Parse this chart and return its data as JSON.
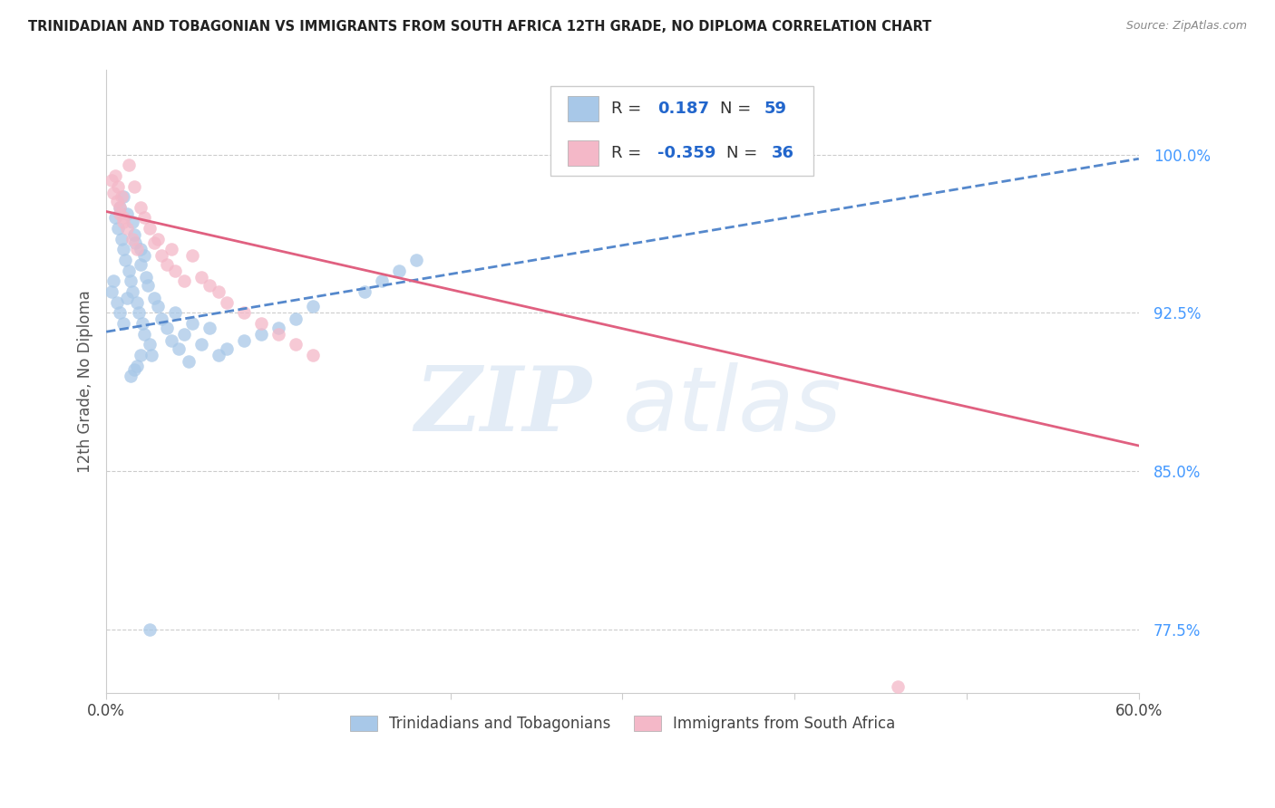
{
  "title": "TRINIDADIAN AND TOBAGONIAN VS IMMIGRANTS FROM SOUTH AFRICA 12TH GRADE, NO DIPLOMA CORRELATION CHART",
  "source": "Source: ZipAtlas.com",
  "ylabel": "12th Grade, No Diploma",
  "xlim": [
    0.0,
    0.6
  ],
  "ylim": [
    0.745,
    1.04
  ],
  "blue_R": "0.187",
  "blue_N": "59",
  "pink_R": "-0.359",
  "pink_N": "36",
  "legend_label_blue": "Trinidadians and Tobagonians",
  "legend_label_pink": "Immigrants from South Africa",
  "blue_color": "#a8c8e8",
  "pink_color": "#f4b8c8",
  "blue_line_color": "#5588cc",
  "pink_line_color": "#e06080",
  "watermark_zip": "ZIP",
  "watermark_atlas": "atlas",
  "blue_scatter_x": [
    0.005,
    0.007,
    0.008,
    0.009,
    0.01,
    0.01,
    0.011,
    0.012,
    0.013,
    0.014,
    0.015,
    0.015,
    0.016,
    0.017,
    0.018,
    0.019,
    0.02,
    0.02,
    0.021,
    0.022,
    0.022,
    0.023,
    0.024,
    0.025,
    0.026,
    0.028,
    0.03,
    0.032,
    0.035,
    0.038,
    0.04,
    0.042,
    0.045,
    0.048,
    0.05,
    0.055,
    0.06,
    0.065,
    0.07,
    0.08,
    0.09,
    0.1,
    0.11,
    0.12,
    0.003,
    0.004,
    0.006,
    0.008,
    0.01,
    0.012,
    0.15,
    0.16,
    0.17,
    0.18,
    0.014,
    0.016,
    0.018,
    0.02,
    0.025
  ],
  "blue_scatter_y": [
    0.97,
    0.965,
    0.975,
    0.96,
    0.98,
    0.955,
    0.95,
    0.972,
    0.945,
    0.94,
    0.968,
    0.935,
    0.962,
    0.958,
    0.93,
    0.925,
    0.955,
    0.948,
    0.92,
    0.952,
    0.915,
    0.942,
    0.938,
    0.91,
    0.905,
    0.932,
    0.928,
    0.922,
    0.918,
    0.912,
    0.925,
    0.908,
    0.915,
    0.902,
    0.92,
    0.91,
    0.918,
    0.905,
    0.908,
    0.912,
    0.915,
    0.918,
    0.922,
    0.928,
    0.935,
    0.94,
    0.93,
    0.925,
    0.92,
    0.932,
    0.935,
    0.94,
    0.945,
    0.95,
    0.895,
    0.898,
    0.9,
    0.905,
    0.775
  ],
  "pink_scatter_x": [
    0.005,
    0.007,
    0.008,
    0.009,
    0.01,
    0.012,
    0.013,
    0.015,
    0.016,
    0.018,
    0.02,
    0.022,
    0.025,
    0.028,
    0.03,
    0.032,
    0.035,
    0.038,
    0.04,
    0.045,
    0.05,
    0.055,
    0.06,
    0.065,
    0.07,
    0.08,
    0.09,
    0.1,
    0.11,
    0.12,
    0.003,
    0.004,
    0.006,
    0.008,
    0.01,
    0.46
  ],
  "pink_scatter_y": [
    0.99,
    0.985,
    0.975,
    0.98,
    0.97,
    0.965,
    0.995,
    0.96,
    0.985,
    0.955,
    0.975,
    0.97,
    0.965,
    0.958,
    0.96,
    0.952,
    0.948,
    0.955,
    0.945,
    0.94,
    0.952,
    0.942,
    0.938,
    0.935,
    0.93,
    0.925,
    0.92,
    0.915,
    0.91,
    0.905,
    0.988,
    0.982,
    0.978,
    0.972,
    0.968,
    0.748
  ],
  "blue_trend_x": [
    0.0,
    0.6
  ],
  "blue_trend_y": [
    0.916,
    0.998
  ],
  "pink_trend_x": [
    0.0,
    0.6
  ],
  "pink_trend_y": [
    0.973,
    0.862
  ]
}
